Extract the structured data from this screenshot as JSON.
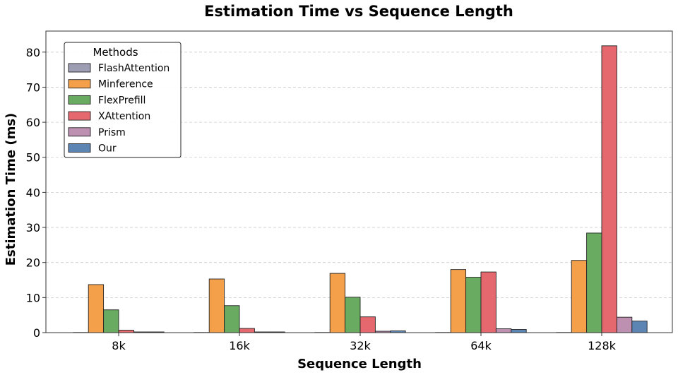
{
  "chart_data": {
    "type": "bar",
    "title": "Estimation Time vs Sequence Length",
    "xlabel": "Sequence Length",
    "ylabel": "Estimation Time (ms)",
    "categories": [
      "8k",
      "16k",
      "32k",
      "64k",
      "128k"
    ],
    "ylim": [
      0,
      86
    ],
    "yticks": [
      0,
      10,
      20,
      30,
      40,
      50,
      60,
      70,
      80
    ],
    "grid": "y-dashed",
    "legend": {
      "title": "Methods",
      "placement": "top-left"
    },
    "series": [
      {
        "name": "FlashAttention",
        "color": "#9d9db3",
        "values": [
          0.05,
          0.05,
          0.05,
          0.05,
          0.05
        ]
      },
      {
        "name": "Minference",
        "color": "#f4a04a",
        "values": [
          13.7,
          15.3,
          16.9,
          18.0,
          20.6
        ]
      },
      {
        "name": "FlexPrefill",
        "color": "#6aab62",
        "values": [
          6.5,
          7.7,
          10.1,
          15.8,
          28.4
        ]
      },
      {
        "name": "XAttention",
        "color": "#e4686e",
        "values": [
          0.7,
          1.2,
          4.5,
          17.3,
          81.8
        ]
      },
      {
        "name": "Prism",
        "color": "#bd8fb0",
        "values": [
          0.2,
          0.2,
          0.4,
          1.1,
          4.4
        ]
      },
      {
        "name": "Our",
        "color": "#5d85b3",
        "values": [
          0.2,
          0.2,
          0.5,
          0.9,
          3.3
        ]
      }
    ]
  }
}
